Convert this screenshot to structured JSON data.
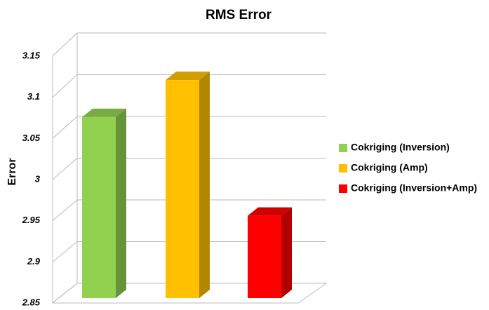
{
  "chart_data": {
    "type": "bar3d",
    "title": "RMS Error",
    "y_label": "Error",
    "series": [
      {
        "name": "Cokriging (Inversion)",
        "color": "#92d050",
        "values": [
          3.07
        ]
      },
      {
        "name": "Cokriging (Amp)",
        "color": "#ffc000",
        "values": [
          3.115
        ]
      },
      {
        "name": "Cokriging (Inversion+Amp)",
        "color": "#ff0000",
        "values": [
          2.95
        ]
      }
    ],
    "ylim": [
      2.85,
      3.15
    ],
    "yticks": [
      2.85,
      2.9,
      2.95,
      3,
      3.05,
      3.1,
      3.15
    ],
    "grid": true,
    "legend": "right"
  }
}
